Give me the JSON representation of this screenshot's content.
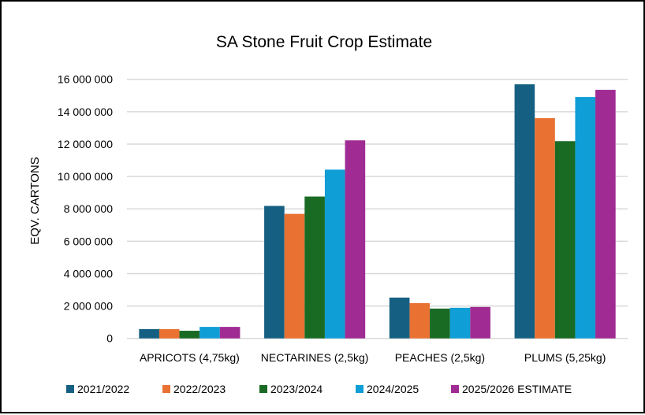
{
  "chart_data": {
    "type": "bar",
    "title": "SA Stone Fruit Crop Estimate",
    "xlabel": "",
    "ylabel": "EQV. CARTONS",
    "ylim": [
      0,
      16000000
    ],
    "yticks": [
      0,
      2000000,
      4000000,
      6000000,
      8000000,
      10000000,
      12000000,
      14000000,
      16000000
    ],
    "ytick_labels": [
      "0",
      "2 000 000",
      "4 000 000",
      "6 000 000",
      "8 000 000",
      "10 000 000",
      "12 000 000",
      "14 000 000",
      "16 000 000"
    ],
    "grid": true,
    "legend_position": "bottom",
    "categories": [
      "APRICOTS (4,75kg)",
      "NECTARINES (2,5kg)",
      "PEACHES (2,5kg)",
      "PLUMS (5,25kg)"
    ],
    "series": [
      {
        "name": "2021/2022",
        "color": "#156082",
        "values": [
          570000,
          8180000,
          2520000,
          15690000
        ]
      },
      {
        "name": "2022/2023",
        "color": "#E97132",
        "values": [
          570000,
          7690000,
          2180000,
          13600000
        ]
      },
      {
        "name": "2023/2024",
        "color": "#196B24",
        "values": [
          470000,
          8760000,
          1840000,
          12180000
        ]
      },
      {
        "name": "2024/2025",
        "color": "#0F9ED5",
        "values": [
          710000,
          10420000,
          1890000,
          14910000
        ]
      },
      {
        "name": "2025/2026 ESTIMATE",
        "color": "#A02B93",
        "values": [
          710000,
          12230000,
          1940000,
          15350000
        ]
      }
    ]
  }
}
